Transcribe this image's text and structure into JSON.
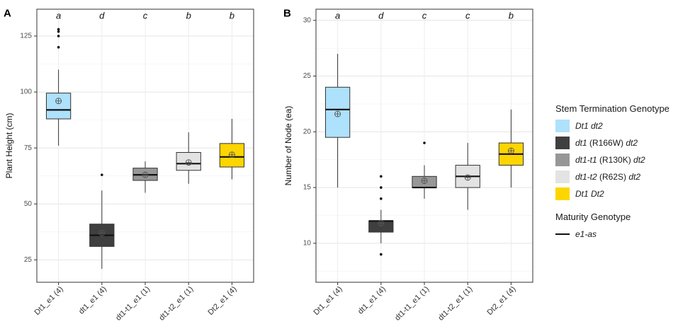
{
  "chart_data": [
    {
      "panel": "A",
      "type": "box",
      "ylabel": "Plant Height (cm)",
      "xlabel": "",
      "ylim": [
        15,
        137
      ],
      "yticks": [
        25,
        50,
        75,
        100,
        125
      ],
      "categories": [
        "Dt1_e1 (4)",
        "dt1_e1 (4)",
        "dt1-t1_e1 (1)",
        "dt1-t2_e1 (1)",
        "Dt2_e1 (4)"
      ],
      "letters": [
        "a",
        "d",
        "c",
        "b",
        "b"
      ],
      "boxes": [
        {
          "whisker_low": 76,
          "q1": 88,
          "median": 92,
          "q3": 99.5,
          "whisker_high": 110,
          "mean": 96,
          "outliers": [
            120,
            125,
            127,
            128
          ]
        },
        {
          "whisker_low": 21,
          "q1": 31,
          "median": 36,
          "q3": 41,
          "whisker_high": 56,
          "mean": 37,
          "outliers": [
            63
          ]
        },
        {
          "whisker_low": 55,
          "q1": 60.5,
          "median": 63,
          "q3": 66,
          "whisker_high": 69,
          "mean": 63,
          "outliers": []
        },
        {
          "whisker_low": 59,
          "q1": 65,
          "median": 68,
          "q3": 73,
          "whisker_high": 82,
          "mean": 68.5,
          "outliers": []
        },
        {
          "whisker_low": 61,
          "q1": 66.5,
          "median": 71,
          "q3": 77,
          "whisker_high": 88,
          "mean": 72,
          "outliers": []
        }
      ],
      "grid": true
    },
    {
      "panel": "B",
      "type": "box",
      "ylabel": "Number of Node (ea)",
      "xlabel": "",
      "ylim": [
        6.5,
        31
      ],
      "yticks": [
        10,
        15,
        20,
        25,
        30
      ],
      "categories": [
        "Dt1_e1 (4)",
        "dt1_e1 (4)",
        "dt1-t1_e1 (1)",
        "dt1-t2_e1 (1)",
        "Dt2_e1 (4)"
      ],
      "letters": [
        "a",
        "d",
        "c",
        "c",
        "b"
      ],
      "boxes": [
        {
          "whisker_low": 15,
          "q1": 19.5,
          "median": 22,
          "q3": 24,
          "whisker_high": 27,
          "mean": 21.6,
          "outliers": []
        },
        {
          "whisker_low": 10,
          "q1": 11,
          "median": 12,
          "q3": 12,
          "whisker_high": 13,
          "mean": 11.8,
          "outliers": [
            9,
            14,
            15,
            16
          ]
        },
        {
          "whisker_low": 14,
          "q1": 15,
          "median": 15,
          "q3": 16,
          "whisker_high": 17,
          "mean": 15.6,
          "outliers": [
            19
          ]
        },
        {
          "whisker_low": 13,
          "q1": 15,
          "median": 16,
          "q3": 17,
          "whisker_high": 19,
          "mean": 15.9,
          "outliers": []
        },
        {
          "whisker_low": 15,
          "q1": 17,
          "median": 18,
          "q3": 19,
          "whisker_high": 22,
          "mean": 18.3,
          "outliers": []
        }
      ],
      "grid": true
    }
  ],
  "colors": [
    "#aee1fb",
    "#3f3f3f",
    "#979797",
    "#e3e3e3",
    "#fdd500"
  ],
  "legend": {
    "stem_title": "Stem Termination Genotype",
    "stem_items": [
      {
        "italic": "Dt1 dt2",
        "plain": "",
        "tail": ""
      },
      {
        "italic": "dt1",
        "plain": " (R166W) ",
        "tail": "dt2"
      },
      {
        "italic": "dt1-t1",
        "plain": " (R130K) ",
        "tail": "dt2"
      },
      {
        "italic": "dt1-t2",
        "plain": " (R62S) ",
        "tail": "dt2"
      },
      {
        "italic": "Dt1 Dt2",
        "plain": "",
        "tail": ""
      }
    ],
    "maturity_title": "Maturity Genotype",
    "maturity_item": "e1-as"
  }
}
